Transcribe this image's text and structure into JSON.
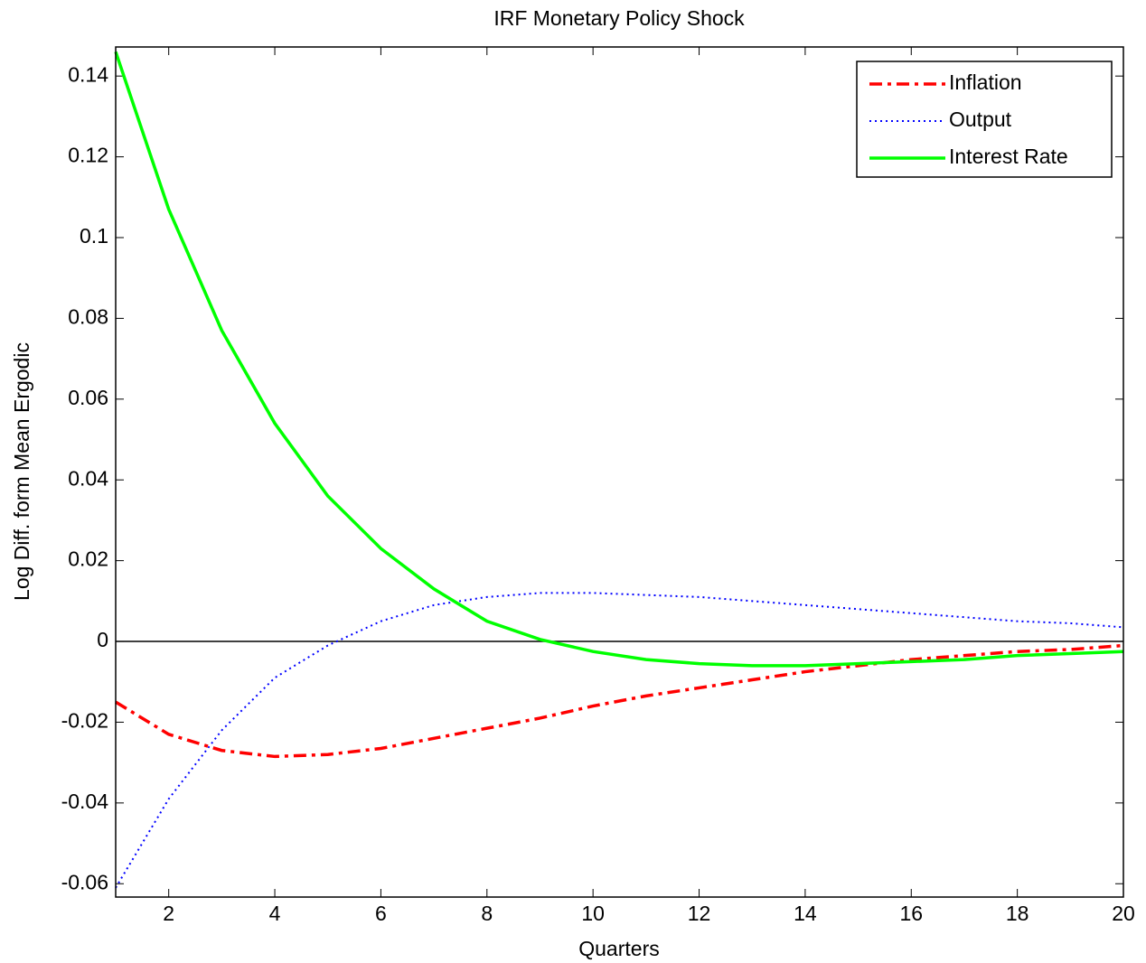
{
  "chart_data": {
    "type": "line",
    "title": "IRF Monetary Policy Shock",
    "x_label": "Quarters",
    "y_label": "Log Diff. form Mean Ergodic",
    "x": [
      1,
      2,
      3,
      4,
      5,
      6,
      7,
      8,
      9,
      10,
      11,
      12,
      13,
      14,
      15,
      16,
      17,
      18,
      19,
      20
    ],
    "series": [
      {
        "name": "Inflation",
        "color": "#ff0000",
        "dash": "dash-dot",
        "values": [
          -0.015,
          -0.023,
          -0.027,
          -0.0285,
          -0.028,
          -0.0265,
          -0.024,
          -0.0215,
          -0.019,
          -0.016,
          -0.0135,
          -0.0115,
          -0.0095,
          -0.0075,
          -0.006,
          -0.0045,
          -0.0035,
          -0.0025,
          -0.002,
          -0.001
        ]
      },
      {
        "name": "Output",
        "color": "#0000ff",
        "dash": "dotted",
        "values": [
          -0.061,
          -0.039,
          -0.022,
          -0.009,
          -0.001,
          0.005,
          0.009,
          0.011,
          0.012,
          0.012,
          0.0115,
          0.011,
          0.01,
          0.009,
          0.008,
          0.007,
          0.006,
          0.005,
          0.0045,
          0.0035
        ]
      },
      {
        "name": "Interest Rate",
        "color": "#00ff00",
        "dash": "solid",
        "values": [
          0.146,
          0.107,
          0.077,
          0.054,
          0.036,
          0.023,
          0.013,
          0.005,
          0.0005,
          -0.0025,
          -0.0045,
          -0.0055,
          -0.006,
          -0.006,
          -0.0055,
          -0.005,
          -0.0045,
          -0.0035,
          -0.003,
          -0.0025
        ]
      }
    ],
    "xlim": [
      1,
      20
    ],
    "xticks": [
      2,
      4,
      6,
      8,
      10,
      12,
      14,
      16,
      18,
      20
    ],
    "ylim": [
      -0.0633,
      0.1472
    ],
    "yticks": [
      -0.06,
      -0.04,
      -0.02,
      0,
      0.02,
      0.04,
      0.06,
      0.08,
      0.1,
      0.12,
      0.14
    ],
    "hline": 0,
    "legend": "top-right"
  }
}
